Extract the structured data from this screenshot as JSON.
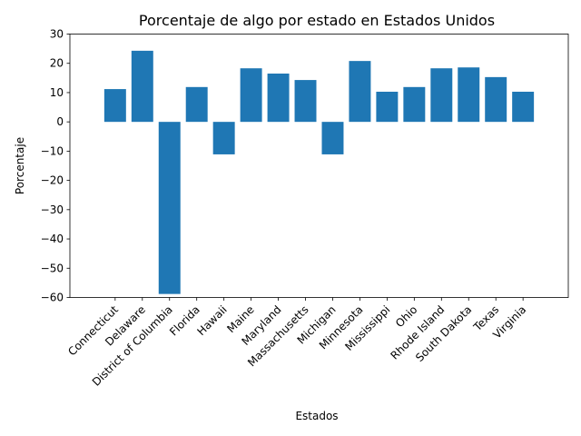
{
  "chart_data": {
    "type": "bar",
    "title": "Porcentaje de algo por estado en Estados Unidos",
    "xlabel": "Estados",
    "ylabel": "Porcentaje",
    "ylim": [
      -60,
      30
    ],
    "yticks": [
      30,
      20,
      10,
      0,
      -10,
      -20,
      -30,
      -40,
      -50,
      -60
    ],
    "ytick_labels": [
      "30",
      "20",
      "10",
      "0",
      "−10",
      "−20",
      "−30",
      "−40",
      "−50",
      "−60"
    ],
    "categories": [
      "Connecticut",
      "Delaware",
      "District of Columbia",
      "Florida",
      "Hawaii",
      "Maine",
      "Maryland",
      "Massachusetts",
      "Michigan",
      "Minnesota",
      "Mississippi",
      "Ohio",
      "Rhode Island",
      "South Dakota",
      "Texas",
      "Virginia"
    ],
    "values": [
      11.2,
      24.3,
      -58.8,
      11.9,
      -11.1,
      18.3,
      16.5,
      14.3,
      -11.1,
      20.8,
      10.3,
      11.9,
      18.3,
      18.6,
      15.3,
      10.3
    ],
    "bar_color": "#1f77b4",
    "grid": false,
    "legend": "none"
  }
}
